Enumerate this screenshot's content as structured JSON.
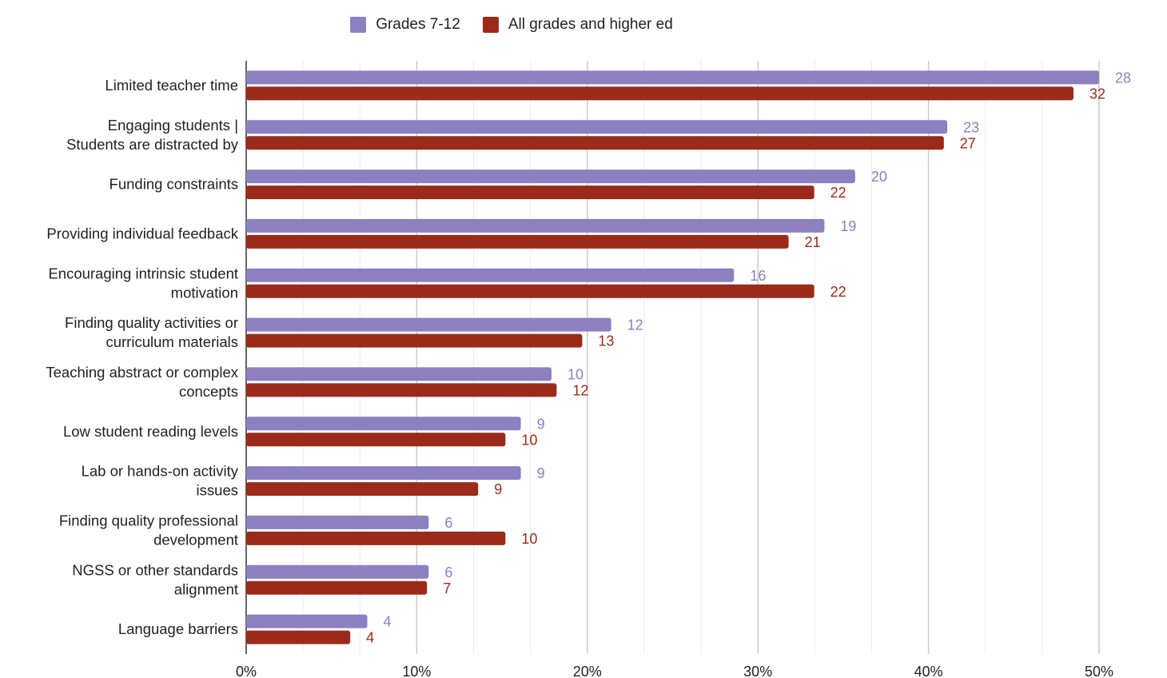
{
  "chart_data": {
    "type": "bar",
    "orientation": "horizontal",
    "legend_position": "top",
    "categories": [
      [
        "Limited teacher time"
      ],
      [
        "Engaging students |",
        "Students are distracted by"
      ],
      [
        "Funding constraints"
      ],
      [
        "Providing individual feedback"
      ],
      [
        "Encouraging intrinsic student",
        "motivation"
      ],
      [
        "Finding quality activities or",
        "curriculum materials"
      ],
      [
        "Teaching abstract or complex",
        "concepts"
      ],
      [
        "Low student reading levels"
      ],
      [
        "Lab or hands-on activity",
        "issues"
      ],
      [
        "Finding quality professional",
        "development"
      ],
      [
        "NGSS or other standards",
        "alignment"
      ],
      [
        "Language barriers"
      ]
    ],
    "series": [
      {
        "name": "Grades 7-12",
        "color": "#8c80c0",
        "values": [
          50,
          41.1,
          35.7,
          33.9,
          28.6,
          21.4,
          17.9,
          16.1,
          16.1,
          10.7,
          10.7,
          7.1
        ],
        "labels": [
          "28",
          "23",
          "20",
          "19",
          "16",
          "12",
          "10",
          "9",
          "9",
          "6",
          "6",
          "4"
        ]
      },
      {
        "name": "All grades and higher ed",
        "color": "#9b2a1a",
        "values": [
          48.5,
          40.9,
          33.3,
          31.8,
          33.3,
          19.7,
          18.2,
          15.2,
          13.6,
          15.2,
          10.6,
          6.1
        ],
        "labels": [
          "32",
          "27",
          "22",
          "21",
          "22",
          "13",
          "12",
          "10",
          "9",
          "10",
          "7",
          "4"
        ]
      }
    ],
    "xlim": [
      0,
      50
    ],
    "xticks": [
      0,
      10,
      20,
      30,
      40,
      50
    ],
    "xtick_labels": [
      "0%",
      "10%",
      "20%",
      "30%",
      "40%",
      "50%"
    ],
    "grid": true
  }
}
